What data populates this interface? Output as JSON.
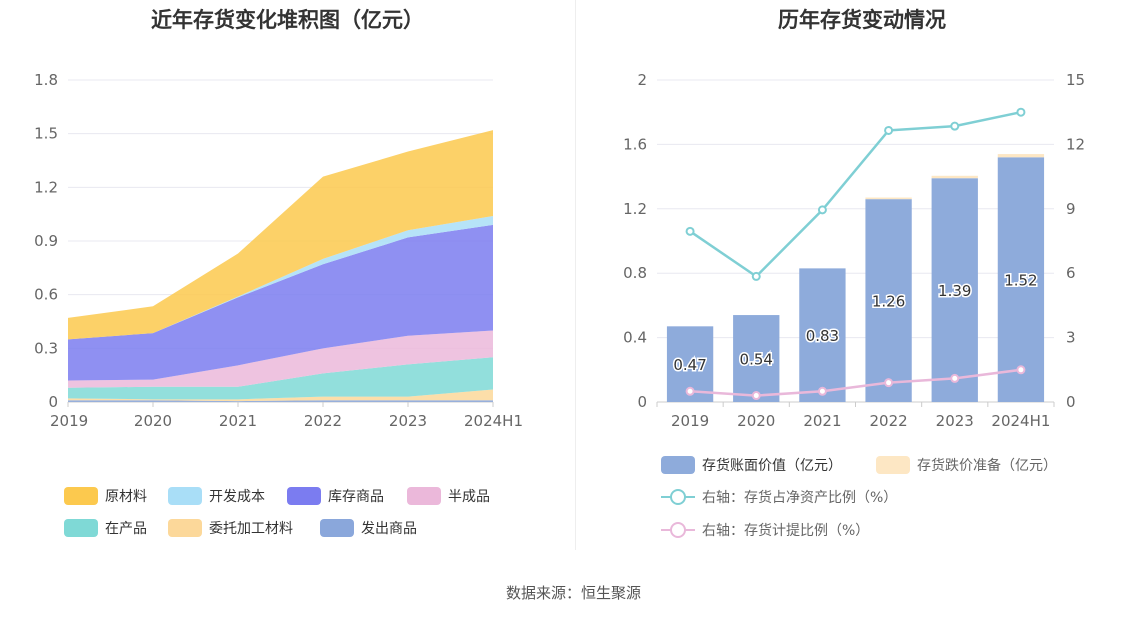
{
  "source_prefix": "数据来源：",
  "source_name": "恒生聚源",
  "chart_data": [
    {
      "type": "area",
      "title": "近年存货变化堆积图（亿元）",
      "x": [
        "2019",
        "2020",
        "2021",
        "2022",
        "2023",
        "2024H1"
      ],
      "yticks": [
        "0",
        "0.3",
        "0.6",
        "0.9",
        "1.2",
        "1.5",
        "1.8"
      ],
      "ylim": [
        0,
        1.8
      ],
      "stacked": true,
      "series": [
        {
          "name": "发出商品",
          "color": "#8aa7db",
          "values": [
            0.01,
            0.01,
            0.005,
            0.01,
            0.01,
            0.01
          ]
        },
        {
          "name": "委托加工材料",
          "color": "#fcd89a",
          "values": [
            0.01,
            0.005,
            0.01,
            0.02,
            0.02,
            0.06
          ]
        },
        {
          "name": "在产品",
          "color": "#7fd9d6",
          "values": [
            0.06,
            0.07,
            0.07,
            0.13,
            0.18,
            0.18
          ]
        },
        {
          "name": "半成品",
          "color": "#ebb8da",
          "values": [
            0.04,
            0.04,
            0.12,
            0.14,
            0.16,
            0.15
          ]
        },
        {
          "name": "库存商品",
          "color": "#7b7cf0",
          "values": [
            0.23,
            0.26,
            0.38,
            0.47,
            0.55,
            0.59
          ]
        },
        {
          "name": "开发成本",
          "color": "#a9def7",
          "values": [
            0.0,
            0.0,
            0.005,
            0.03,
            0.04,
            0.05
          ]
        },
        {
          "name": "原材料",
          "color": "#fcc94e",
          "values": [
            0.12,
            0.15,
            0.24,
            0.46,
            0.44,
            0.48
          ]
        }
      ],
      "legend_position": "bottom"
    },
    {
      "type": "bar",
      "title": "历年存货变动情况",
      "categories": [
        "2019",
        "2020",
        "2021",
        "2022",
        "2023",
        "2024H1"
      ],
      "y_left_ticks": [
        "0",
        "0.4",
        "0.8",
        "1.2",
        "1.6",
        "2"
      ],
      "ylim_left": [
        0,
        2
      ],
      "y_right_ticks": [
        "0",
        "3",
        "6",
        "9",
        "12",
        "15"
      ],
      "ylim_right": [
        0,
        15
      ],
      "bar_labels": [
        "0.47",
        "0.54",
        "0.83",
        "1.26",
        "1.39",
        "1.52"
      ],
      "series": [
        {
          "name": "存货账面价值（亿元）",
          "kind": "bar",
          "color": "#8eabdb",
          "values": [
            0.47,
            0.54,
            0.83,
            1.26,
            1.39,
            1.52
          ]
        },
        {
          "name": "存货跌价准备（亿元）",
          "kind": "bar",
          "color": "#fde7c4",
          "values": [
            0.0,
            0.0,
            0.0,
            0.01,
            0.015,
            0.02
          ]
        },
        {
          "name": "右轴：存货占净资产比例（%）",
          "kind": "line",
          "axis": "right",
          "color": "#7fcfd4",
          "values": [
            7.95,
            5.85,
            8.95,
            12.65,
            12.85,
            13.5
          ]
        },
        {
          "name": "右轴：存货计提比例（%）",
          "kind": "line",
          "axis": "right",
          "color": "#e9b8da",
          "values": [
            0.5,
            0.3,
            0.5,
            0.9,
            1.1,
            1.5
          ]
        }
      ],
      "legend_position": "bottom"
    }
  ]
}
